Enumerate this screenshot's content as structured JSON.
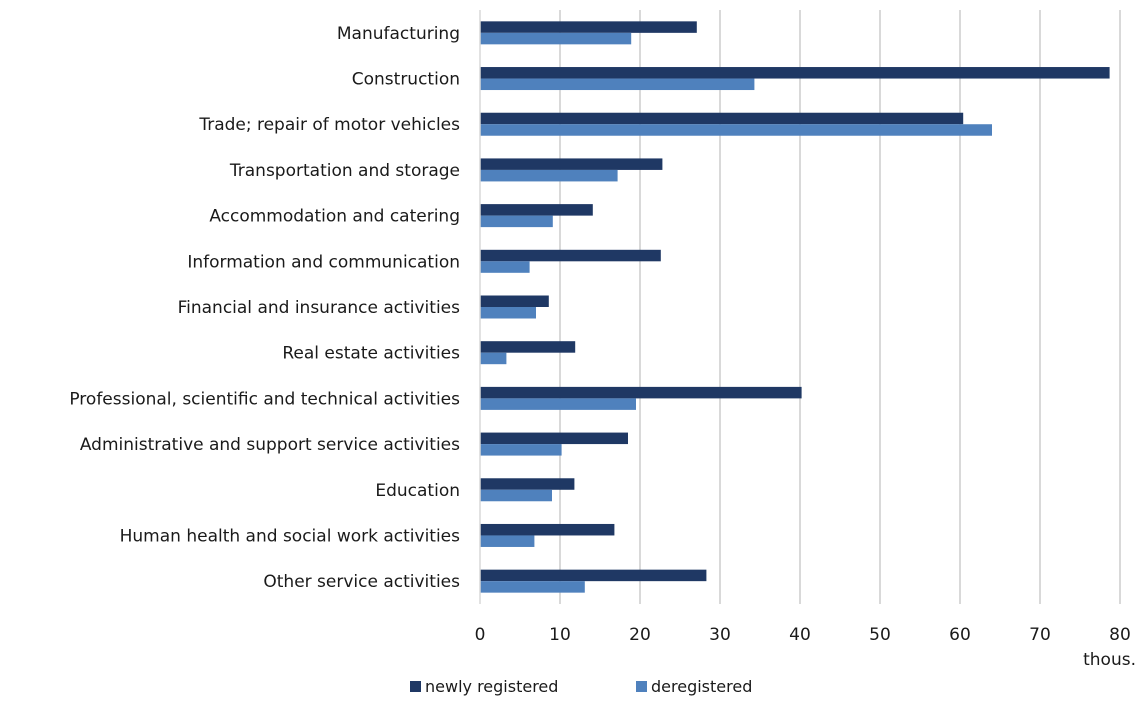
{
  "chart_data": {
    "type": "bar",
    "orientation": "horizontal",
    "categories": [
      "Manufacturing",
      "Construction",
      "Trade; repair of motor vehicles",
      "Transportation and storage",
      "Accommodation and catering",
      "Information and communication",
      "Financial and insurance activities",
      "Real estate activities",
      "Professional, scientific and technical activities",
      "Administrative and support service activities",
      "Education",
      "Human health and social work activities",
      "Other service activities"
    ],
    "series": [
      {
        "name": "newly registered",
        "color": "#1f3864",
        "values": [
          27.1,
          78.7,
          60.4,
          22.8,
          14.1,
          22.6,
          8.6,
          11.9,
          40.2,
          18.5,
          11.8,
          16.8,
          28.3
        ]
      },
      {
        "name": "deregistered",
        "color": "#4f81bd",
        "values": [
          18.9,
          34.3,
          64.0,
          17.2,
          9.1,
          6.2,
          7.0,
          3.3,
          19.5,
          10.2,
          9.0,
          6.8,
          13.1
        ]
      }
    ],
    "x_ticks": [
      "0",
      "10",
      "20",
      "30",
      "40",
      "50",
      "60",
      "70",
      "80"
    ],
    "xlim": [
      0,
      80
    ],
    "x_unit": "thous.",
    "grid": true,
    "legend_position": "bottom"
  }
}
